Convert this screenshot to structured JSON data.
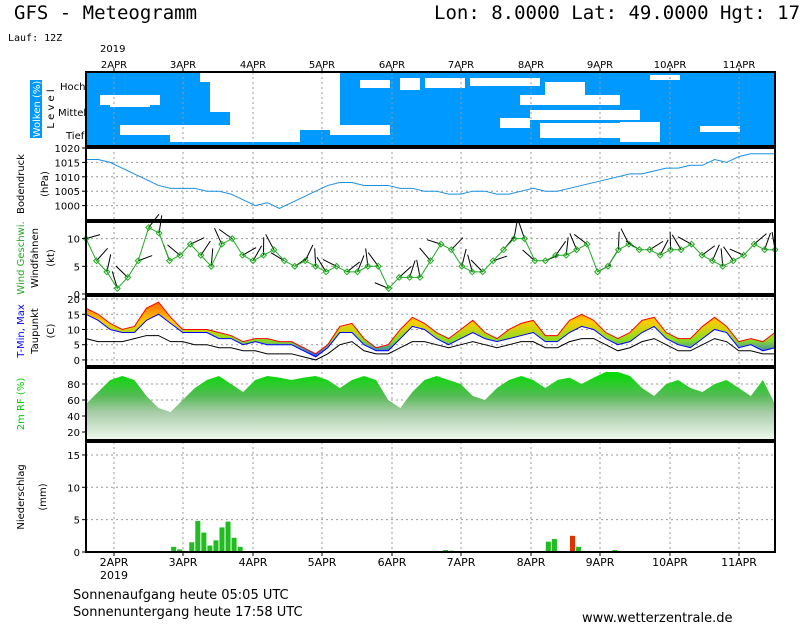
{
  "header": {
    "title": "GFS - Meteogramm",
    "location": "Lon: 8.0000 Lat: 49.0000 Hgt: 17",
    "run": "Lauf: 12Z"
  },
  "footer": {
    "sunrise": "Sonnenaufgang heute 05:05 UTC",
    "sunset": "Sonnenuntergang heute 17:58 UTC",
    "website": "www.wetterzentrale.de"
  },
  "colors": {
    "cloud_bg": "#0099ff",
    "pressure": "#1b8fe0",
    "wind": "#22aa22",
    "tmin": "#0000ff",
    "tmax": "#ff0000",
    "humidity": "#00cc00",
    "precip_rain": "#22bb22",
    "precip_conv": "#dd3300"
  },
  "chart_data": {
    "type": "meteogram",
    "time_axis": {
      "year_label": "2019",
      "day_labels": [
        "2APR",
        "3APR",
        "4APR",
        "5APR",
        "6APR",
        "7APR",
        "8APR",
        "9APR",
        "10APR",
        "11APR"
      ],
      "start_hours_before_first_label": 3,
      "step_hours": 6
    },
    "panels": [
      {
        "id": "clouds",
        "ylabel": "Wolken (%)",
        "ylabel2": "L e v e l",
        "levels": [
          "Hoch",
          "Mittel",
          "Tief"
        ],
        "type": "heatmap"
      },
      {
        "id": "pressure",
        "ylabel": "Bodendruck",
        "ylabel2": "(hPa)",
        "type": "line",
        "ylim": [
          995,
          1020
        ],
        "ticks": [
          1000,
          1005,
          1010,
          1015,
          1020
        ],
        "values": [
          1016,
          1016,
          1015,
          1013,
          1011,
          1009,
          1007,
          1006,
          1006,
          1006,
          1005,
          1005,
          1004,
          1002,
          1000,
          1001,
          999,
          1001,
          1003,
          1005,
          1007,
          1008,
          1008,
          1007,
          1007,
          1007,
          1006,
          1006,
          1005,
          1005,
          1004,
          1004,
          1005,
          1005,
          1004,
          1004,
          1005,
          1006,
          1005,
          1005,
          1006,
          1007,
          1008,
          1009,
          1010,
          1011,
          1011,
          1012,
          1013,
          1013,
          1014,
          1014,
          1016,
          1015,
          1017,
          1018,
          1018,
          1018
        ]
      },
      {
        "id": "wind",
        "ylabel": "Wind Geschwi.",
        "ylabel2": "Windfahnen",
        "ylabel3": "(kt)",
        "type": "line",
        "ylim": [
          0,
          13
        ],
        "ticks": [
          0,
          5,
          10
        ],
        "values": [
          10,
          6,
          4,
          1,
          3,
          6,
          12,
          11,
          6,
          7,
          9,
          7,
          5,
          9,
          10,
          7,
          6,
          7,
          8,
          6,
          5,
          6,
          5,
          4,
          5,
          4,
          4,
          5,
          5,
          1,
          3,
          3,
          3,
          6,
          9,
          8,
          5,
          4,
          4,
          6,
          8,
          10,
          10,
          6,
          6,
          7,
          7,
          8,
          9,
          4,
          5,
          8,
          9,
          8,
          8,
          7,
          8,
          8,
          9,
          7,
          6,
          5,
          6,
          7,
          9,
          8,
          8
        ]
      },
      {
        "id": "temperature",
        "ylabel": "T-Min, Max",
        "ylabel2": "Taupunkt",
        "ylabel3": "(C)",
        "type": "area",
        "ylim": [
          -2,
          21
        ],
        "ticks": [
          0,
          5,
          10,
          15,
          20
        ],
        "tmin": [
          15,
          13,
          10,
          9,
          9,
          13,
          15,
          12,
          9,
          9,
          9,
          7,
          7,
          5,
          6,
          5,
          5,
          5,
          3,
          1,
          4,
          9,
          9,
          5,
          3,
          3,
          7,
          11,
          10,
          7,
          5,
          7,
          9,
          7,
          6,
          7,
          8,
          9,
          6,
          6,
          9,
          11,
          10,
          7,
          5,
          6,
          9,
          11,
          7,
          5,
          4,
          7,
          10,
          9,
          4,
          5,
          3,
          4
        ],
        "tmax": [
          17,
          15,
          12,
          10,
          11,
          17,
          19,
          14,
          10,
          10,
          10,
          9,
          8,
          6,
          7,
          7,
          6,
          6,
          4,
          2,
          5,
          11,
          12,
          7,
          4,
          5,
          10,
          14,
          12,
          9,
          7,
          10,
          13,
          9,
          7,
          10,
          12,
          13,
          8,
          8,
          13,
          15,
          13,
          9,
          7,
          9,
          13,
          14,
          9,
          7,
          7,
          11,
          14,
          11,
          6,
          7,
          6,
          9
        ],
        "dewpoint": [
          7,
          6,
          6,
          6,
          7,
          8,
          8,
          6,
          6,
          5,
          5,
          4,
          4,
          3,
          3,
          2,
          2,
          2,
          1,
          0,
          2,
          5,
          6,
          3,
          2,
          2,
          4,
          6,
          6,
          5,
          4,
          5,
          6,
          5,
          4,
          5,
          6,
          6,
          4,
          4,
          6,
          7,
          7,
          5,
          3,
          4,
          6,
          7,
          5,
          3,
          3,
          5,
          7,
          6,
          3,
          3,
          2,
          2
        ]
      },
      {
        "id": "humidity",
        "ylabel": "2m RF (%)",
        "type": "area",
        "ylim": [
          10,
          100
        ],
        "ticks": [
          20,
          40,
          60,
          80
        ],
        "values": [
          55,
          70,
          85,
          90,
          85,
          65,
          50,
          45,
          60,
          75,
          85,
          90,
          80,
          70,
          85,
          90,
          88,
          85,
          88,
          90,
          85,
          75,
          85,
          90,
          85,
          60,
          50,
          70,
          85,
          90,
          85,
          80,
          65,
          60,
          75,
          85,
          90,
          85,
          75,
          85,
          88,
          80,
          88,
          95,
          95,
          90,
          75,
          65,
          80,
          85,
          75,
          70,
          80,
          85,
          75,
          65,
          85,
          55
        ]
      },
      {
        "id": "precip",
        "ylabel": "Niederschlag",
        "ylabel2": "(mm)",
        "type": "bar",
        "ylim": [
          0,
          17
        ],
        "ticks": [
          0,
          5,
          10,
          15
        ],
        "values": [
          0,
          0,
          0,
          0,
          0,
          0,
          0,
          0,
          0,
          0,
          0,
          0,
          0,
          0,
          0.8,
          0.4,
          0,
          1.5,
          4.8,
          3,
          1,
          1.8,
          3.8,
          4.7,
          2.2,
          0.8,
          0,
          0,
          0,
          0,
          0,
          0,
          0,
          0,
          0,
          0,
          0,
          0,
          0,
          0,
          0,
          0,
          0,
          0,
          0,
          0,
          0,
          0,
          0,
          0,
          0,
          0,
          0,
          0,
          0,
          0,
          0,
          0,
          0,
          0.3,
          0.2,
          0,
          0,
          0,
          0,
          0,
          0,
          0,
          0,
          0,
          0,
          0,
          0,
          0,
          0,
          0,
          1.6,
          2,
          0,
          0,
          2.5,
          0.8,
          0,
          0,
          0,
          0,
          0,
          0.3,
          0,
          0,
          0,
          0,
          0,
          0,
          0,
          0,
          0,
          0,
          0,
          0,
          0,
          0,
          0,
          0,
          0,
          0,
          0,
          0,
          0,
          0,
          0,
          0,
          0,
          0
        ]
      }
    ],
    "bottom_axis_year": "2019"
  }
}
